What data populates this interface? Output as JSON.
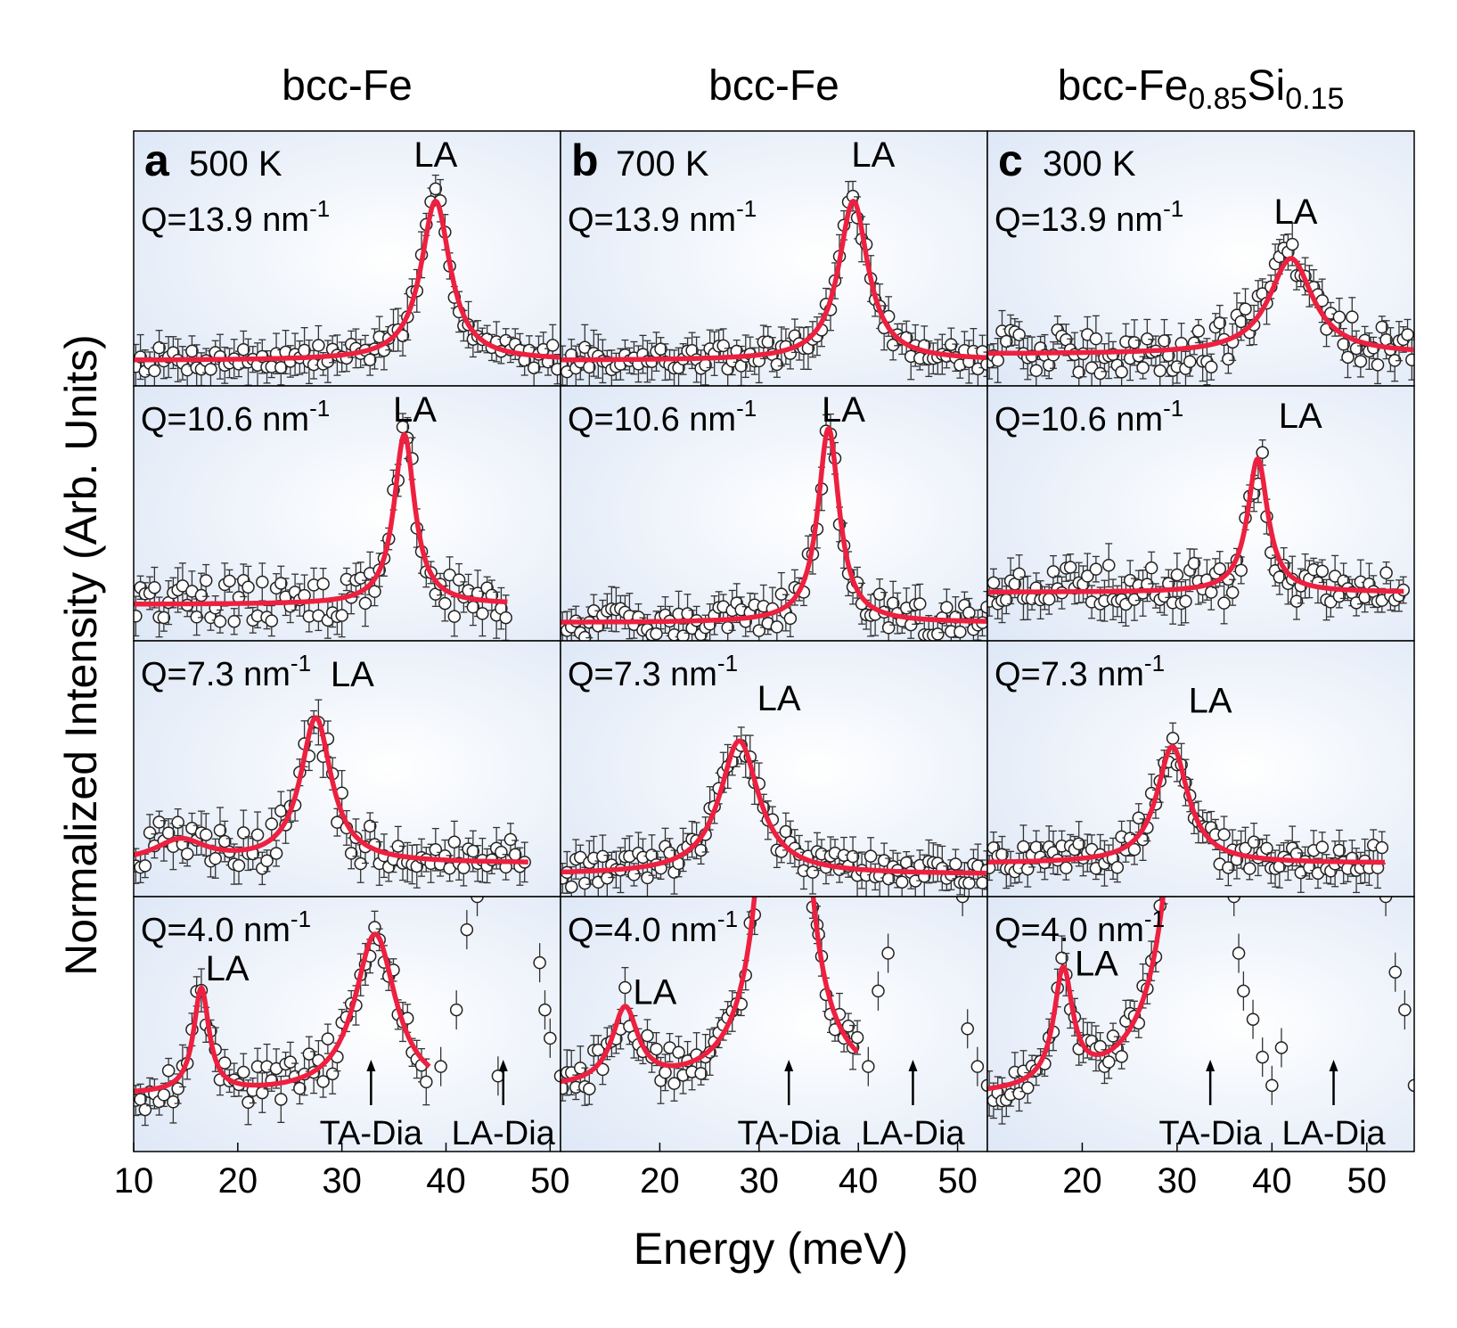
{
  "figure": {
    "ylabel": "Normalized Intensity (Arb. Units)",
    "xlabel": "Energy (meV)",
    "fit_color": "#ee2040",
    "panel_bg": "#e9f0fa"
  },
  "chart_data": [
    {
      "type": "scatter",
      "column_title": "bcc-Fe",
      "panel_letter": "a",
      "temperature": "500 K",
      "xlim": [
        10,
        51
      ],
      "xticks": [
        10,
        20,
        30,
        40,
        50
      ],
      "rows": [
        {
          "q_label": "Q=13.9 nm",
          "la_label": "LA",
          "peak_label_at": [
            39,
            1.16
          ],
          "x_end": 51,
          "range": [
            50,
            250
          ],
          "bg": 70,
          "peaks": [
            {
              "e": 39.0,
              "amp": 125,
              "w": 1.7
            }
          ],
          "ymin": 40,
          "noise": 10
        },
        {
          "q_label": "Q=10.6 nm",
          "la_label": "LA",
          "peak_label_at": [
            37,
            1.2
          ],
          "x_end": 46,
          "range": [
            60,
            270
          ],
          "bg": 90,
          "peaks": [
            {
              "e": 36.0,
              "amp": 140,
              "w": 1.2
            }
          ],
          "ymin": 75,
          "noise": 20
        },
        {
          "q_label": "Q=7.3 nm",
          "la_label": "LA",
          "peak_label_at": [
            31,
            1.15
          ],
          "x_end": 48,
          "range": [
            40,
            270
          ],
          "bg": 70,
          "peaks": [
            {
              "e": 14.5,
              "amp": 20,
              "w": 3.0
            },
            {
              "e": 27.5,
              "amp": 130,
              "w": 1.8
            }
          ],
          "ymin": 65,
          "noise": 22
        },
        {
          "q_label": "Q=4.0 nm",
          "la_label": "LA",
          "peak_label_at": [
            19,
            1.0
          ],
          "x_end": 38.5,
          "range": [
            30,
            300
          ],
          "bg": 90,
          "peaks": [
            {
              "e": 16.5,
              "amp": 110,
              "w": 0.9
            },
            {
              "e": 33.2,
              "amp": 170,
              "w": 2.4
            }
          ],
          "ymin": 60,
          "noise": 22,
          "extra_points": [
            {
              "x": 41,
              "y": 180
            },
            {
              "x": 42,
              "y": 265
            },
            {
              "x": 42.5,
              "y": 330
            },
            {
              "x": 43,
              "y": 300
            },
            {
              "x": 49,
              "y": 230
            },
            {
              "x": 49.5,
              "y": 180
            },
            {
              "x": 50,
              "y": 150
            },
            {
              "x": 51,
              "y": 110
            },
            {
              "x": 39.5,
              "y": 120
            },
            {
              "x": 45,
              "y": 110
            }
          ],
          "arrows": [
            {
              "x": 32.8,
              "label": "TA-Dia"
            },
            {
              "x": 45.5,
              "label": "LA-Dia"
            }
          ]
        }
      ]
    },
    {
      "type": "scatter",
      "column_title": "bcc-Fe",
      "panel_letter": "b",
      "temperature": "700 K",
      "xlim": [
        10,
        53
      ],
      "xticks": [
        20,
        30,
        40,
        50
      ],
      "rows": [
        {
          "q_label": "Q=13.9 nm",
          "la_label": "LA",
          "peak_label_at": [
            41.5,
            1.32
          ],
          "x_end": 53,
          "range": [
            50,
            250
          ],
          "bg": 70,
          "peaks": [
            {
              "e": 39.5,
              "amp": 125,
              "w": 1.8
            }
          ],
          "ymin": 40,
          "noise": 10
        },
        {
          "q_label": "Q=10.6 nm",
          "la_label": "LA",
          "peak_label_at": [
            38.5,
            1.2
          ],
          "x_end": 53,
          "range": [
            50,
            260
          ],
          "bg": 65,
          "peaks": [
            {
              "e": 37.0,
              "amp": 160,
              "w": 1.3
            }
          ],
          "ymin": 50,
          "noise": 14
        },
        {
          "q_label": "Q=7.3 nm",
          "la_label": "LA",
          "peak_label_at": [
            32,
            1.15
          ],
          "x_end": 53,
          "range": [
            40,
            270
          ],
          "bg": 60,
          "peaks": [
            {
              "e": 28.0,
              "amp": 120,
              "w": 2.4
            }
          ],
          "ymin": 40,
          "noise": 14
        },
        {
          "q_label": "Q=4.0 nm",
          "la_label": "LA",
          "peak_label_at": [
            19.5,
            1.0
          ],
          "x_end": 40,
          "range": [
            30,
            300
          ],
          "bg": 95,
          "peaks": [
            {
              "e": 16.5,
              "amp": 80,
              "w": 1.6
            },
            {
              "e": 32.5,
              "amp": 900,
              "w": 1.6
            }
          ],
          "ymin": 70,
          "noise": 20,
          "extra_points": [
            {
              "x": 41,
              "y": 120
            },
            {
              "x": 42,
              "y": 200
            },
            {
              "x": 43,
              "y": 240
            },
            {
              "x": 50,
              "y": 330
            },
            {
              "x": 50.5,
              "y": 300
            },
            {
              "x": 51,
              "y": 160
            },
            {
              "x": 52,
              "y": 120
            },
            {
              "x": 53,
              "y": 100
            },
            {
              "x": 31,
              "y": 320
            },
            {
              "x": 36,
              "y": 260
            }
          ],
          "arrows": [
            {
              "x": 33.0,
              "label": "TA-Dia"
            },
            {
              "x": 45.5,
              "label": "LA-Dia"
            }
          ]
        }
      ]
    },
    {
      "type": "scatter",
      "column_title": "bcc-Fe",
      "column_title_sub1": "0.85",
      "column_title_mid": "Si",
      "column_title_sub2": "0.15",
      "panel_letter": "c",
      "temperature": "300 K",
      "xlim": [
        10,
        55
      ],
      "xticks": [
        20,
        30,
        40,
        50
      ],
      "rows": [
        {
          "q_label": "Q=13.9 nm",
          "la_label": "LA",
          "peak_label_at": [
            42.5,
            1.25
          ],
          "x_end": 55,
          "range": [
            50,
            250
          ],
          "bg": 75,
          "peaks": [
            {
              "e": 42.0,
              "amp": 75,
              "w": 2.8
            }
          ],
          "ymin": 45,
          "noise": 18
        },
        {
          "q_label": "Q=10.6 nm",
          "la_label": "LA",
          "peak_label_at": [
            43,
            1.15
          ],
          "x_end": 54,
          "range": [
            60,
            270
          ],
          "bg": 100,
          "peaks": [
            {
              "e": 38.5,
              "amp": 110,
              "w": 1.3
            }
          ],
          "ymin": 90,
          "noise": 22
        },
        {
          "q_label": "Q=7.3 nm",
          "la_label": "LA",
          "peak_label_at": [
            33.5,
            1.2
          ],
          "x_end": 52,
          "range": [
            40,
            270
          ],
          "bg": 70,
          "peaks": [
            {
              "e": 29.5,
              "amp": 105,
              "w": 2.0
            }
          ],
          "ymin": 60,
          "noise": 16
        },
        {
          "q_label": "Q=4.0 nm",
          "la_label": "LA",
          "peak_label_at": [
            21.5,
            1.0
          ],
          "x_end": 31,
          "range": [
            30,
            300
          ],
          "bg": 85,
          "peaks": [
            {
              "e": 18.0,
              "amp": 120,
              "w": 1.2
            },
            {
              "e": 33.0,
              "amp": 2400,
              "w": 1.4
            }
          ],
          "ymin": 70,
          "noise": 18,
          "extra_points": [
            {
              "x": 36,
              "y": 300
            },
            {
              "x": 36.5,
              "y": 240
            },
            {
              "x": 37,
              "y": 200
            },
            {
              "x": 38,
              "y": 170
            },
            {
              "x": 39,
              "y": 130
            },
            {
              "x": 40,
              "y": 100
            },
            {
              "x": 41,
              "y": 140
            },
            {
              "x": 52,
              "y": 300
            },
            {
              "x": 53,
              "y": 220
            },
            {
              "x": 54,
              "y": 180
            },
            {
              "x": 55,
              "y": 100
            }
          ],
          "arrows": [
            {
              "x": 33.5,
              "label": "TA-Dia"
            },
            {
              "x": 46.5,
              "label": "LA-Dia"
            }
          ]
        }
      ]
    }
  ]
}
